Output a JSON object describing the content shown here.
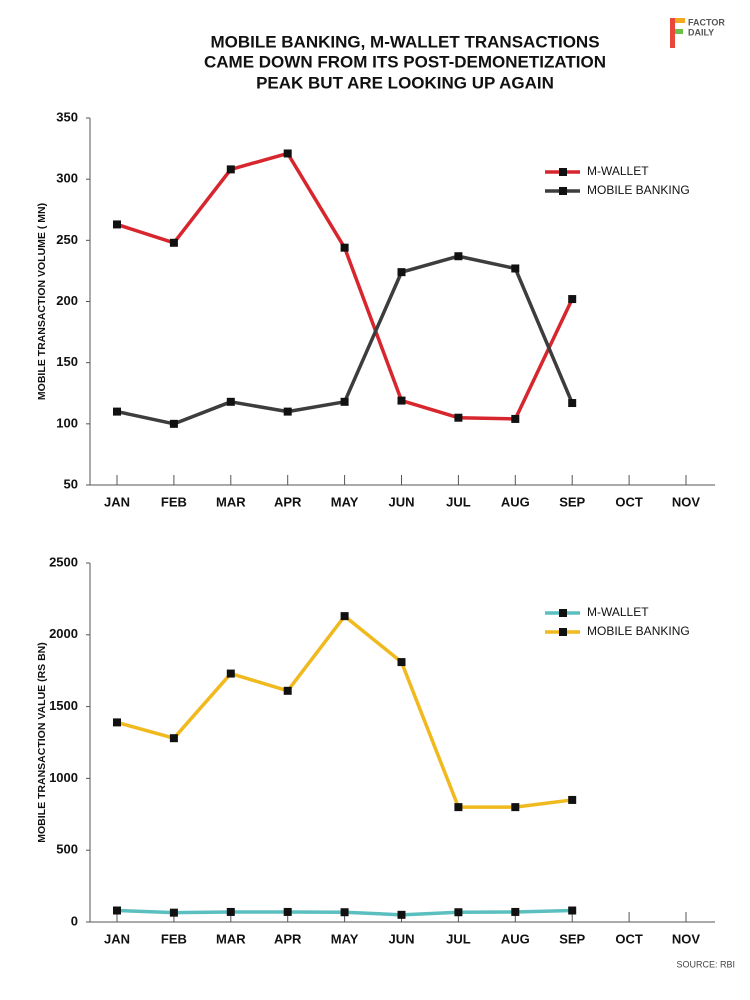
{
  "title": [
    "MOBILE BANKING, M-WALLET TRANSACTIONS",
    "CAME DOWN FROM ITS POST-DEMONETIZATION",
    "PEAK BUT ARE LOOKING UP AGAIN"
  ],
  "logo": [
    "FACTOR",
    "DAILY"
  ],
  "source": "SOURCE: RBI",
  "chart_data": [
    {
      "type": "line",
      "y_label": "MOBILE  TRANSACTION VOLUME ( MN)",
      "categories": [
        "JAN",
        "FEB",
        "MAR",
        "APR",
        "MAY",
        "JUN",
        "JUL",
        "AUG",
        "SEP",
        "OCT",
        "NOV"
      ],
      "series": [
        {
          "name": "M-WALLET",
          "color": "#d7262e",
          "values": [
            263,
            248,
            308,
            321,
            244,
            119,
            105,
            104,
            202,
            null,
            null
          ]
        },
        {
          "name": "MOBILE BANKING",
          "color": "#3d3d3d",
          "values": [
            110,
            100,
            118,
            110,
            118,
            224,
            237,
            227,
            117,
            null,
            null
          ]
        }
      ],
      "ylim": [
        50,
        350
      ],
      "yticks": [
        50,
        100,
        150,
        200,
        250,
        300,
        350
      ]
    },
    {
      "type": "line",
      "y_label": "MOBILE  TRANSACTION VALUE (RS BN)",
      "categories": [
        "JAN",
        "FEB",
        "MAR",
        "APR",
        "MAY",
        "JUN",
        "JUL",
        "AUG",
        "SEP",
        "OCT",
        "NOV"
      ],
      "series": [
        {
          "name": "M-WALLET",
          "color": "#5bbfc0",
          "values": [
            80,
            65,
            70,
            70,
            68,
            50,
            68,
            70,
            80,
            null,
            null
          ]
        },
        {
          "name": "MOBILE BANKING",
          "color": "#f0b91e",
          "values": [
            1390,
            1280,
            1730,
            1610,
            2130,
            1810,
            800,
            800,
            850,
            null,
            null
          ]
        }
      ],
      "ylim": [
        0,
        2500
      ],
      "yticks": [
        0,
        500,
        1000,
        1500,
        2000,
        2500
      ]
    }
  ]
}
